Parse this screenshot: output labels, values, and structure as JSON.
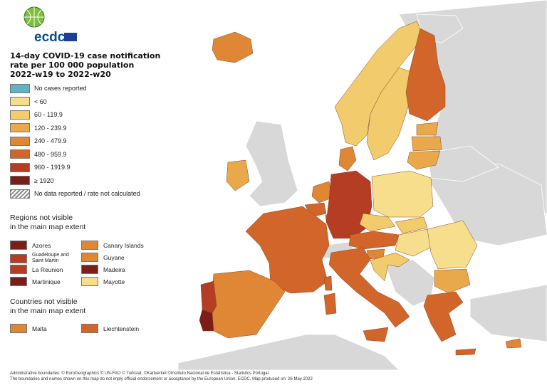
{
  "logo": {
    "text": "ecdc"
  },
  "legend": {
    "title_lines": [
      "14-day COVID-19 case notification",
      "rate per 100 000 population",
      "2022-w19 to 2022-w20"
    ],
    "items": [
      {
        "label": "No cases reported",
        "color": "#5fb3c3"
      },
      {
        "label": "< 60",
        "color": "#f6de8d"
      },
      {
        "label": "60 - 119.9",
        "color": "#f2cb6c"
      },
      {
        "label": "120 - 239.9",
        "color": "#e9a94b"
      },
      {
        "label": "240 - 479.9",
        "color": "#df8734"
      },
      {
        "label": "480 - 959.9",
        "color": "#d2652a"
      },
      {
        "label": "960 - 1919.9",
        "color": "#b43d23"
      },
      {
        "label": "≥ 1920",
        "color": "#7d1d17"
      },
      {
        "label": "No data reported / rate not calculated",
        "color": "hatch"
      }
    ]
  },
  "regions": {
    "title_lines": [
      "Regions not visible",
      "in the main map extent"
    ],
    "items": [
      {
        "label": "Azores",
        "color": "#7d1d17"
      },
      {
        "label": "Guadeloupe and Saint Martin",
        "color": "#b43d23"
      },
      {
        "label": "La Reunion",
        "color": "#b43d23"
      },
      {
        "label": "Martinique",
        "color": "#7d1d17"
      },
      {
        "label": "Canary Islands",
        "color": "#df8734"
      },
      {
        "label": "Guyane",
        "color": "#df8734"
      },
      {
        "label": "Madeira",
        "color": "#7d1d17"
      },
      {
        "label": "Mayotte",
        "color": "#f6de8d"
      }
    ]
  },
  "countries": {
    "title_lines": [
      "Countries not visible",
      "in the main map extent"
    ],
    "items": [
      {
        "label": "Malta",
        "color": "#df8734"
      },
      {
        "label": "Liechtenstein",
        "color": "#d2652a"
      }
    ]
  },
  "footer": {
    "lines": [
      "Administrative boundaries: © EuroGeographics © UN-FAO © Turkstat. ©Kartverket ©Instituto Nacional de Estatística - Statistics Portugal.",
      "The boundaries and names shown on this map do not imply official endorsement or acceptance by the European Union. ECDC. Map produced on: 26 May 2022"
    ]
  },
  "map_colors": {
    "sea": "#ffffff",
    "non_eu_land": "#d8d8d8",
    "border": "#ffffff"
  },
  "countries_fill": {
    "iceland": "#df8734",
    "norway": "#f2cb6c",
    "sweden": "#f2cb6c",
    "finland": "#d2652a",
    "estonia": "#e9a94b",
    "latvia": "#e9a94b",
    "lithuania": "#e9a94b",
    "ireland": "#e9a94b",
    "denmark": "#df8734",
    "netherlands": "#df8734",
    "belgium": "#d2652a",
    "luxembourg": "#d2652a",
    "germany": "#b43d23",
    "poland": "#f6de8d",
    "czechia": "#f2cb6c",
    "slovakia": "#f2cb6c",
    "austria": "#d2652a",
    "hungary": "#f6de8d",
    "romania": "#f6de8d",
    "bulgaria": "#e9a94b",
    "slovenia": "#df8734",
    "croatia": "#f2cb6c",
    "france": "#d2652a",
    "spain": "#df8734",
    "portugal": "#b43d23",
    "portugal_south": "#7d1d17",
    "italy": "#d2652a",
    "greece": "#d2652a",
    "cyprus": "#df8734",
    "switzerland": "#d8d8d8"
  }
}
